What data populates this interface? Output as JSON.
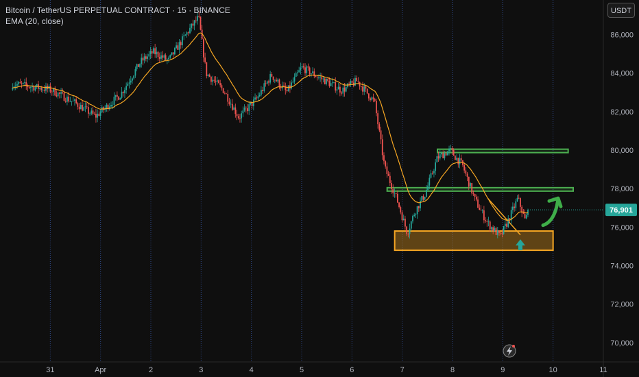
{
  "header": {
    "title": "Bitcoin / TetherUS PERPETUAL CONTRACT · 15 · BINANCE",
    "indicator": "EMA (20, close)"
  },
  "currency_button": "USDT",
  "colors": {
    "background": "#0f0f0f",
    "up": "#26a69a",
    "down": "#ef5350",
    "ema": "#f5a623",
    "zone": "#f5a623",
    "resistance": "#4caf50",
    "arrow_up": "#26a69a",
    "arrow_bounce": "#3fae49",
    "last_price_bg": "#26a69a",
    "session_line": "#2f4a8a"
  },
  "chart_data": {
    "type": "candlestick",
    "symbol": "BTCUSDT.P",
    "interval": "15",
    "x_ticks": [
      "31",
      "Apr",
      "2",
      "3",
      "4",
      "5",
      "6",
      "7",
      "8",
      "9",
      "10",
      "11"
    ],
    "y_ticks": [
      70000,
      72000,
      74000,
      76000,
      78000,
      80000,
      82000,
      84000,
      86000
    ],
    "y_tick_labels": [
      "70,000",
      "72,000",
      "74,000",
      "76,000",
      "78,000",
      "80,000",
      "82,000",
      "84,000",
      "86,000"
    ],
    "ylim": [
      69000,
      87800
    ],
    "last_price": 76901,
    "last_price_label": "76,901",
    "price_path": [
      {
        "t": 31.0,
        "p": 83150
      },
      {
        "t": 31.5,
        "p": 82450
      },
      {
        "t": 31.9,
        "p": 81750
      },
      {
        "t": 32.4,
        "p": 82900
      },
      {
        "t": 32.8,
        "p": 84600
      },
      {
        "t": 33.05,
        "p": 85100
      },
      {
        "t": 33.35,
        "p": 84650
      },
      {
        "t": 33.75,
        "p": 86200
      },
      {
        "t": 33.95,
        "p": 86900
      },
      {
        "t": 34.1,
        "p": 84000
      },
      {
        "t": 34.45,
        "p": 83100
      },
      {
        "t": 34.75,
        "p": 81700
      },
      {
        "t": 35.1,
        "p": 82650
      },
      {
        "t": 35.4,
        "p": 83900
      },
      {
        "t": 35.7,
        "p": 83000
      },
      {
        "t": 36.0,
        "p": 84300
      },
      {
        "t": 36.4,
        "p": 83700
      },
      {
        "t": 36.8,
        "p": 83100
      },
      {
        "t": 37.1,
        "p": 83600
      },
      {
        "t": 37.45,
        "p": 82500
      },
      {
        "t": 37.65,
        "p": 79100
      },
      {
        "t": 37.9,
        "p": 77400
      },
      {
        "t": 38.1,
        "p": 75700
      },
      {
        "t": 38.25,
        "p": 76800
      },
      {
        "t": 38.45,
        "p": 77700
      },
      {
        "t": 38.7,
        "p": 79600
      },
      {
        "t": 38.95,
        "p": 80000
      },
      {
        "t": 39.2,
        "p": 79200
      },
      {
        "t": 39.45,
        "p": 77400
      },
      {
        "t": 39.7,
        "p": 76200
      },
      {
        "t": 39.95,
        "p": 75500
      },
      {
        "t": 40.1,
        "p": 76300
      },
      {
        "t": 40.3,
        "p": 77500
      },
      {
        "t": 40.45,
        "p": 76300
      },
      {
        "t": 40.5,
        "p": 76901
      }
    ],
    "annotations": {
      "support_zone": {
        "t1": 37.85,
        "t2": 41.0,
        "p1": 74800,
        "p2": 75800
      },
      "resistance_1": {
        "t1": 38.7,
        "t2": 41.3,
        "p1": 79900,
        "p2": 80050
      },
      "resistance_2": {
        "t1": 37.7,
        "t2": 41.4,
        "p1": 77900,
        "p2": 78050
      },
      "trend_line": {
        "t1": 39.7,
        "p1": 77500,
        "t2": 40.35,
        "p2": 75600
      },
      "up_arrow": {
        "t": 40.35,
        "p": 74800
      },
      "bounce_arrow": {
        "t1": 40.8,
        "p1": 76100,
        "t2": 41.1,
        "p2": 77500
      }
    }
  }
}
